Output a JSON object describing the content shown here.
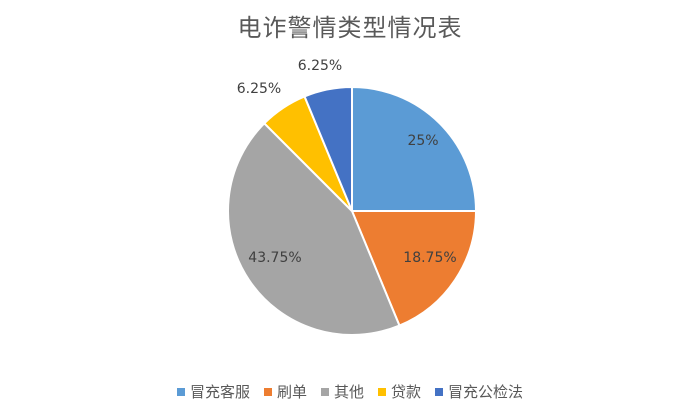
{
  "chart_data": {
    "type": "pie",
    "title": "电诈警情类型情况表",
    "slices": [
      {
        "label": "冒充客服",
        "value": 25,
        "display": "25%",
        "color": "#5B9BD5"
      },
      {
        "label": "刷单",
        "value": 18.75,
        "display": "18.75%",
        "color": "#ED7D31"
      },
      {
        "label": "其他",
        "value": 43.75,
        "display": "43.75%",
        "color": "#A5A5A5"
      },
      {
        "label": "贷款",
        "value": 6.25,
        "display": "6.25%",
        "color": "#FFC000"
      },
      {
        "label": "冒充公检法",
        "value": 6.25,
        "display": "6.25%",
        "color": "#4472C4"
      }
    ],
    "legend_position": "bottom"
  }
}
